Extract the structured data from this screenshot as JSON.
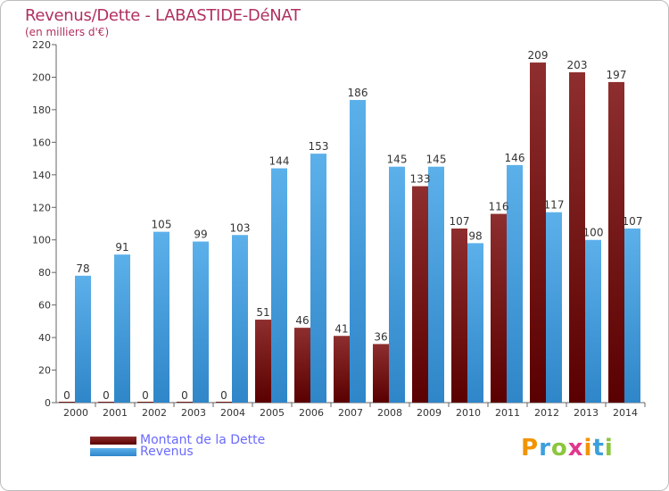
{
  "header": {
    "title": "Revenus/Dette - LABASTIDE-DéNAT",
    "subtitle": "(en milliers d'€)"
  },
  "colors": {
    "title": "#b03060",
    "debt": "#7a1a1a",
    "revenue": "#4aa3e0",
    "legend_text": "#6a6aff"
  },
  "chart_data": {
    "type": "bar",
    "title": "Revenus/Dette - LABASTIDE-DéNAT",
    "ylabel": "(en milliers d'€)",
    "xlabel": "",
    "ylim": [
      0,
      220
    ],
    "yticks": [
      0,
      20,
      40,
      60,
      80,
      100,
      120,
      140,
      160,
      180,
      200,
      220
    ],
    "grid": false,
    "categories": [
      "2000",
      "2001",
      "2002",
      "2003",
      "2004",
      "2005",
      "2006",
      "2007",
      "2008",
      "2009",
      "2010",
      "2011",
      "2012",
      "2013",
      "2014"
    ],
    "series": [
      {
        "name": "Montant de la Dette",
        "color": "#7a1a1a",
        "values": [
          0,
          0,
          0,
          0,
          0,
          51,
          46,
          41,
          36,
          133,
          107,
          116,
          209,
          203,
          197
        ]
      },
      {
        "name": "Revenus",
        "color": "#4aa3e0",
        "values": [
          78,
          91,
          105,
          99,
          103,
          144,
          153,
          186,
          145,
          145,
          98,
          146,
          117,
          100,
          107
        ]
      }
    ],
    "legend_position": "bottom-left"
  },
  "legend": {
    "items": [
      {
        "label": "Montant de la Dette",
        "color": "#7a1a1a"
      },
      {
        "label": "Revenus",
        "color": "#4aa3e0"
      }
    ]
  },
  "brand": {
    "letters": [
      "P",
      "r",
      "o",
      "x",
      "i",
      "t",
      "i"
    ],
    "colors": [
      "#f29400",
      "#3ca0dc",
      "#8cc63e",
      "#e0388c",
      "#f29400",
      "#3ca0dc",
      "#8cc63e"
    ]
  }
}
